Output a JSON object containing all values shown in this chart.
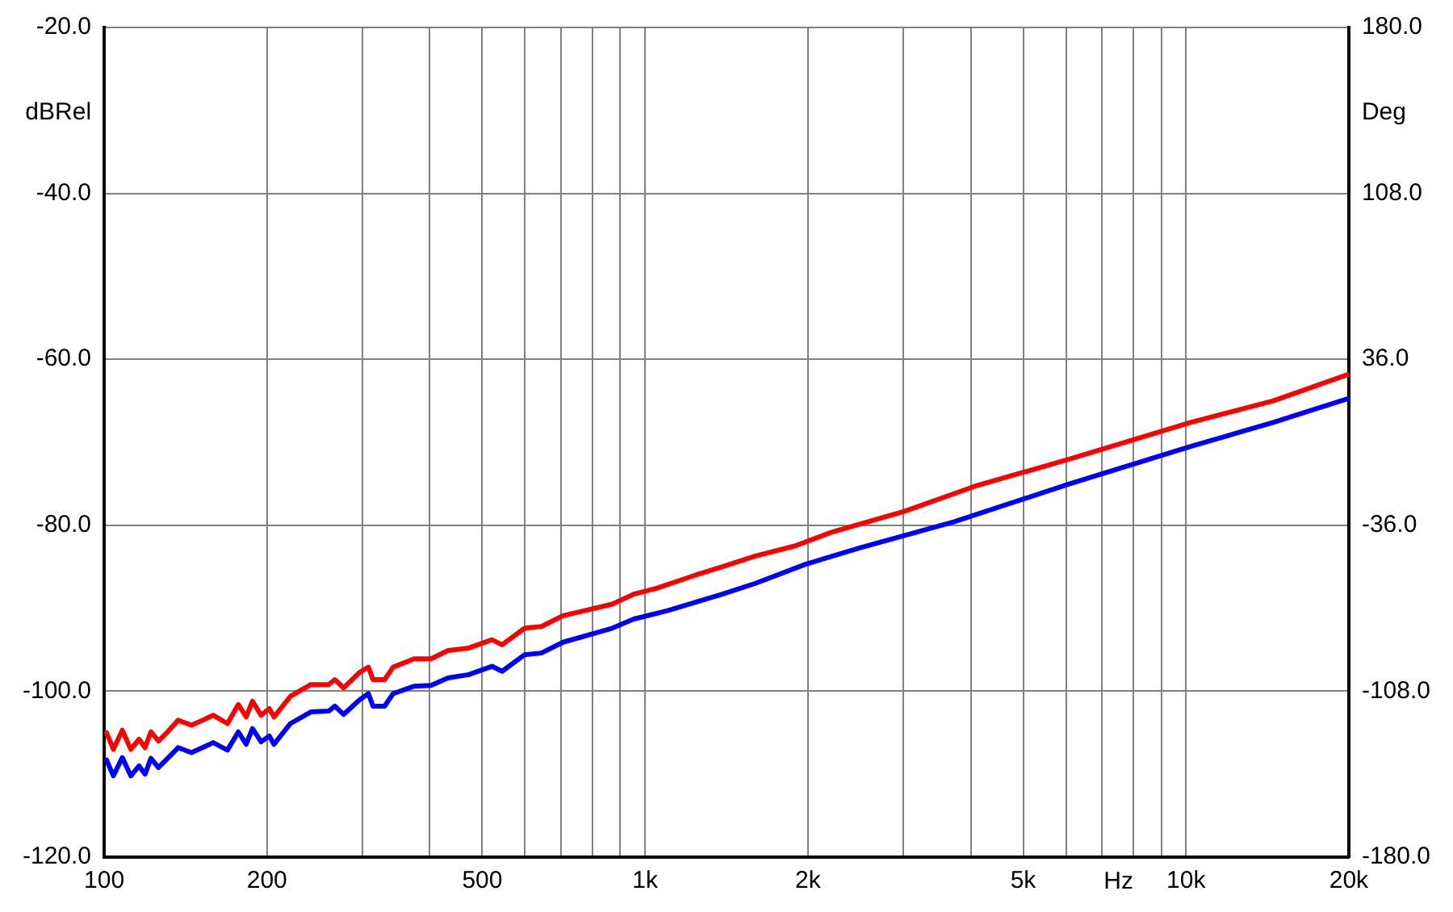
{
  "chart_data": {
    "type": "line",
    "xlabel": "Hz",
    "ylabel": "dBRel",
    "y2label": "Deg",
    "log": "x",
    "grid": true,
    "legend": false,
    "marker": "none",
    "line_style": "solid",
    "xlim": [
      100,
      20000
    ],
    "xticks": [
      100,
      200,
      {
        "value": 300,
        "label": null
      },
      {
        "value": 400,
        "label": null
      },
      500,
      {
        "value": 600,
        "label": null
      },
      {
        "value": 700,
        "label": null
      },
      {
        "value": 800,
        "label": null
      },
      {
        "value": 900,
        "label": null
      },
      {
        "value": 1000,
        "label": "1k"
      },
      {
        "value": 2000,
        "label": "2k"
      },
      {
        "value": 3000,
        "label": null
      },
      {
        "value": 4000,
        "label": null
      },
      {
        "value": 5000,
        "label": "5k"
      },
      {
        "value": 6000,
        "label": null
      },
      {
        "value": 7000,
        "label": null
      },
      {
        "value": 8000,
        "label": null
      },
      {
        "value": 9000,
        "label": null
      },
      {
        "value": 10000,
        "label": "10k"
      },
      {
        "value": 20000,
        "label": "20k"
      }
    ],
    "ylim": [
      -120,
      -20
    ],
    "yticks": [
      {
        "value": -120,
        "label": "-120.0"
      },
      {
        "value": -100,
        "label": "-100.0"
      },
      {
        "value": -80,
        "label": "-80.0"
      },
      {
        "value": -60,
        "label": "-60.0"
      },
      {
        "value": -40,
        "label": "-40.0"
      },
      {
        "value": -20,
        "label": "-20.0"
      }
    ],
    "y2lim": [
      -180,
      180
    ],
    "y2ticks": [
      {
        "value": -180,
        "label": "-180.0"
      },
      {
        "value": -108,
        "label": "-108.0"
      },
      {
        "value": -36,
        "label": "-36.0"
      },
      {
        "value": 36,
        "label": "36.0"
      },
      {
        "value": 108,
        "label": "108.0"
      },
      {
        "value": 180,
        "label": "180.0"
      }
    ],
    "series": [
      {
        "color": "#ff0000",
        "x": [
          101,
          104,
          108,
          112,
          116,
          119,
          122,
          126,
          131,
          137,
          145,
          152,
          159,
          169,
          177,
          183,
          188,
          195,
          202,
          206,
          221,
          241,
          260,
          267,
          277,
          297,
          308,
          314,
          330,
          342,
          374,
          402,
          432,
          472,
          521,
          544,
          599,
          643,
          705,
          870,
          953,
          1050,
          1240,
          1390,
          1600,
          1890,
          2220,
          3020,
          4070,
          6100,
          10200,
          14500,
          20000
        ],
        "values": [
          -105,
          -107,
          -104.7,
          -107,
          -105.8,
          -106.8,
          -104.9,
          -106,
          -104.9,
          -103.5,
          -104.1,
          -103.5,
          -102.9,
          -103.9,
          -101.6,
          -103.1,
          -101.2,
          -102.9,
          -102.1,
          -103.1,
          -100.6,
          -99.2,
          -99.2,
          -98.6,
          -99.6,
          -97.7,
          -97.1,
          -98.6,
          -98.6,
          -97.1,
          -96.1,
          -96.1,
          -95.1,
          -94.8,
          -93.8,
          -94.4,
          -92.4,
          -92.2,
          -90.9,
          -89.5,
          -88.3,
          -87.6,
          -86,
          -85,
          -83.7,
          -82.5,
          -80.8,
          -78.3,
          -75.3,
          -72,
          -67.6,
          -65,
          -61.8
        ]
      },
      {
        "color": "#0000ff",
        "x": [
          101,
          104,
          108,
          112,
          116,
          119,
          122,
          126,
          131,
          137,
          145,
          152,
          159,
          169,
          177,
          183,
          188,
          195,
          202,
          206,
          221,
          241,
          260,
          267,
          277,
          297,
          308,
          314,
          330,
          342,
          374,
          402,
          432,
          472,
          521,
          544,
          599,
          643,
          705,
          870,
          953,
          1100,
          1390,
          1600,
          1980,
          2500,
          3720,
          6100,
          10200,
          14500,
          20000
        ],
        "values": [
          -108.3,
          -110.2,
          -108,
          -110.2,
          -109,
          -110,
          -108.1,
          -109.2,
          -108.1,
          -106.8,
          -107.4,
          -106.8,
          -106.2,
          -107.1,
          -104.9,
          -106.4,
          -104.5,
          -106.1,
          -105.4,
          -106.4,
          -103.9,
          -102.5,
          -102.4,
          -101.8,
          -102.8,
          -101,
          -100.3,
          -101.8,
          -101.8,
          -100.3,
          -99.4,
          -99.3,
          -98.4,
          -98,
          -97,
          -97.6,
          -95.6,
          -95.4,
          -94.1,
          -92.4,
          -91.3,
          -90.3,
          -88.3,
          -87,
          -84.7,
          -82.7,
          -79.6,
          -75,
          -70.5,
          -67.6,
          -64.7
        ]
      }
    ]
  }
}
